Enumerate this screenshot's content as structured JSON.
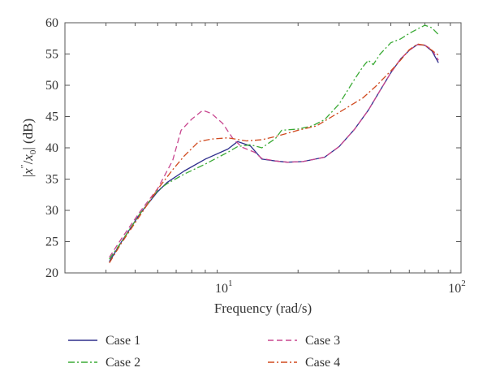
{
  "chart_data": {
    "type": "line",
    "x_scale": "log",
    "xlabel": "Frequency (rad/s)",
    "ylabel_parts": {
      "bar_open": "|",
      "x": "x",
      "prime": "′′",
      "slash": "/",
      "x0": "x",
      "sub0": "0",
      "bar_close": "|",
      "unit": " (dB)"
    },
    "xlim": [
      2,
      100
    ],
    "ylim": [
      20,
      60
    ],
    "x_ticks": [
      {
        "value": 10,
        "base": "10",
        "exp": "1"
      },
      {
        "value": 100,
        "base": "10",
        "exp": "2"
      }
    ],
    "y_ticks": [
      "20",
      "25",
      "30",
      "35",
      "40",
      "45",
      "50",
      "55",
      "60"
    ],
    "grid": false,
    "legend_position": "bottom",
    "series": [
      {
        "name": "Case 1",
        "color": "#2e2e8c",
        "dash": "solid",
        "points": [
          [
            3.1,
            21.8
          ],
          [
            3.5,
            25
          ],
          [
            4.2,
            29.5
          ],
          [
            5,
            33
          ],
          [
            5.5,
            34.5
          ],
          [
            6.5,
            36.3
          ],
          [
            8,
            38.2
          ],
          [
            10,
            39.8
          ],
          [
            11,
            41
          ],
          [
            12.5,
            40.3
          ],
          [
            14,
            38.2
          ],
          [
            16,
            37.9
          ],
          [
            18,
            37.7
          ],
          [
            21,
            37.8
          ],
          [
            23,
            38.1
          ],
          [
            26,
            38.5
          ],
          [
            30,
            40.2
          ],
          [
            35,
            43
          ],
          [
            40,
            46
          ],
          [
            45,
            49.2
          ],
          [
            50,
            52
          ],
          [
            55,
            54.2
          ],
          [
            60,
            55.6
          ],
          [
            65,
            56.5
          ],
          [
            70,
            56.4
          ],
          [
            75,
            55.5
          ],
          [
            80,
            53.6
          ]
        ]
      },
      {
        "name": "Case 2",
        "color": "#3aaa35",
        "dash": "dashdot",
        "points": [
          [
            3.1,
            22.2
          ],
          [
            3.5,
            25
          ],
          [
            4.2,
            29.5
          ],
          [
            5,
            33.2
          ],
          [
            5.5,
            34.3
          ],
          [
            6.5,
            35.8
          ],
          [
            8,
            37.4
          ],
          [
            10,
            39.3
          ],
          [
            11,
            40.2
          ],
          [
            12.5,
            40.5
          ],
          [
            14,
            40
          ],
          [
            16,
            41.5
          ],
          [
            17,
            42.8
          ],
          [
            20,
            43
          ],
          [
            23,
            43.5
          ],
          [
            26,
            44.5
          ],
          [
            30,
            47
          ],
          [
            35,
            51
          ],
          [
            38,
            53
          ],
          [
            40,
            54
          ],
          [
            42,
            53.3
          ],
          [
            45,
            55
          ],
          [
            50,
            56.8
          ],
          [
            55,
            57.4
          ],
          [
            60,
            58.3
          ],
          [
            65,
            59
          ],
          [
            70,
            59.6
          ],
          [
            75,
            59.2
          ],
          [
            80,
            58.1
          ]
        ]
      },
      {
        "name": "Case 3",
        "color": "#c8468f",
        "dash": "dashed",
        "points": [
          [
            3.1,
            22.5
          ],
          [
            3.5,
            25.5
          ],
          [
            4.2,
            29.8
          ],
          [
            5,
            33.5
          ],
          [
            5.8,
            38
          ],
          [
            6.3,
            42.8
          ],
          [
            7,
            44.6
          ],
          [
            7.8,
            46
          ],
          [
            8.5,
            45.5
          ],
          [
            9.5,
            43.9
          ],
          [
            10.5,
            41.5
          ],
          [
            11.5,
            40.1
          ],
          [
            13,
            39.3
          ],
          [
            14,
            38.3
          ],
          [
            16,
            37.9
          ],
          [
            18,
            37.7
          ],
          [
            21,
            37.8
          ],
          [
            23,
            38.1
          ],
          [
            26,
            38.5
          ],
          [
            30,
            40.2
          ],
          [
            35,
            43
          ],
          [
            40,
            46
          ],
          [
            45,
            49.2
          ],
          [
            50,
            52
          ],
          [
            55,
            54.2
          ],
          [
            60,
            55.6
          ],
          [
            65,
            56.5
          ],
          [
            70,
            56.4
          ],
          [
            75,
            55.7
          ],
          [
            80,
            54
          ]
        ]
      },
      {
        "name": "Case 4",
        "color": "#d04a1f",
        "dash": "dashdot",
        "points": [
          [
            3.1,
            21.6
          ],
          [
            3.5,
            24.8
          ],
          [
            4.2,
            29.2
          ],
          [
            5,
            33.4
          ],
          [
            5.8,
            36.5
          ],
          [
            6.5,
            38.7
          ],
          [
            7.5,
            41
          ],
          [
            8.5,
            41.4
          ],
          [
            10,
            41.6
          ],
          [
            12,
            41.1
          ],
          [
            14,
            41.3
          ],
          [
            16,
            41.8
          ],
          [
            20,
            42.8
          ],
          [
            24,
            43.5
          ],
          [
            28,
            45
          ],
          [
            32,
            46.3
          ],
          [
            38,
            48
          ],
          [
            43,
            49.8
          ],
          [
            50,
            52.3
          ],
          [
            55,
            54
          ],
          [
            60,
            55.7
          ],
          [
            65,
            56.6
          ],
          [
            70,
            56.4
          ],
          [
            75,
            55.6
          ],
          [
            80,
            54.8
          ]
        ]
      }
    ]
  }
}
